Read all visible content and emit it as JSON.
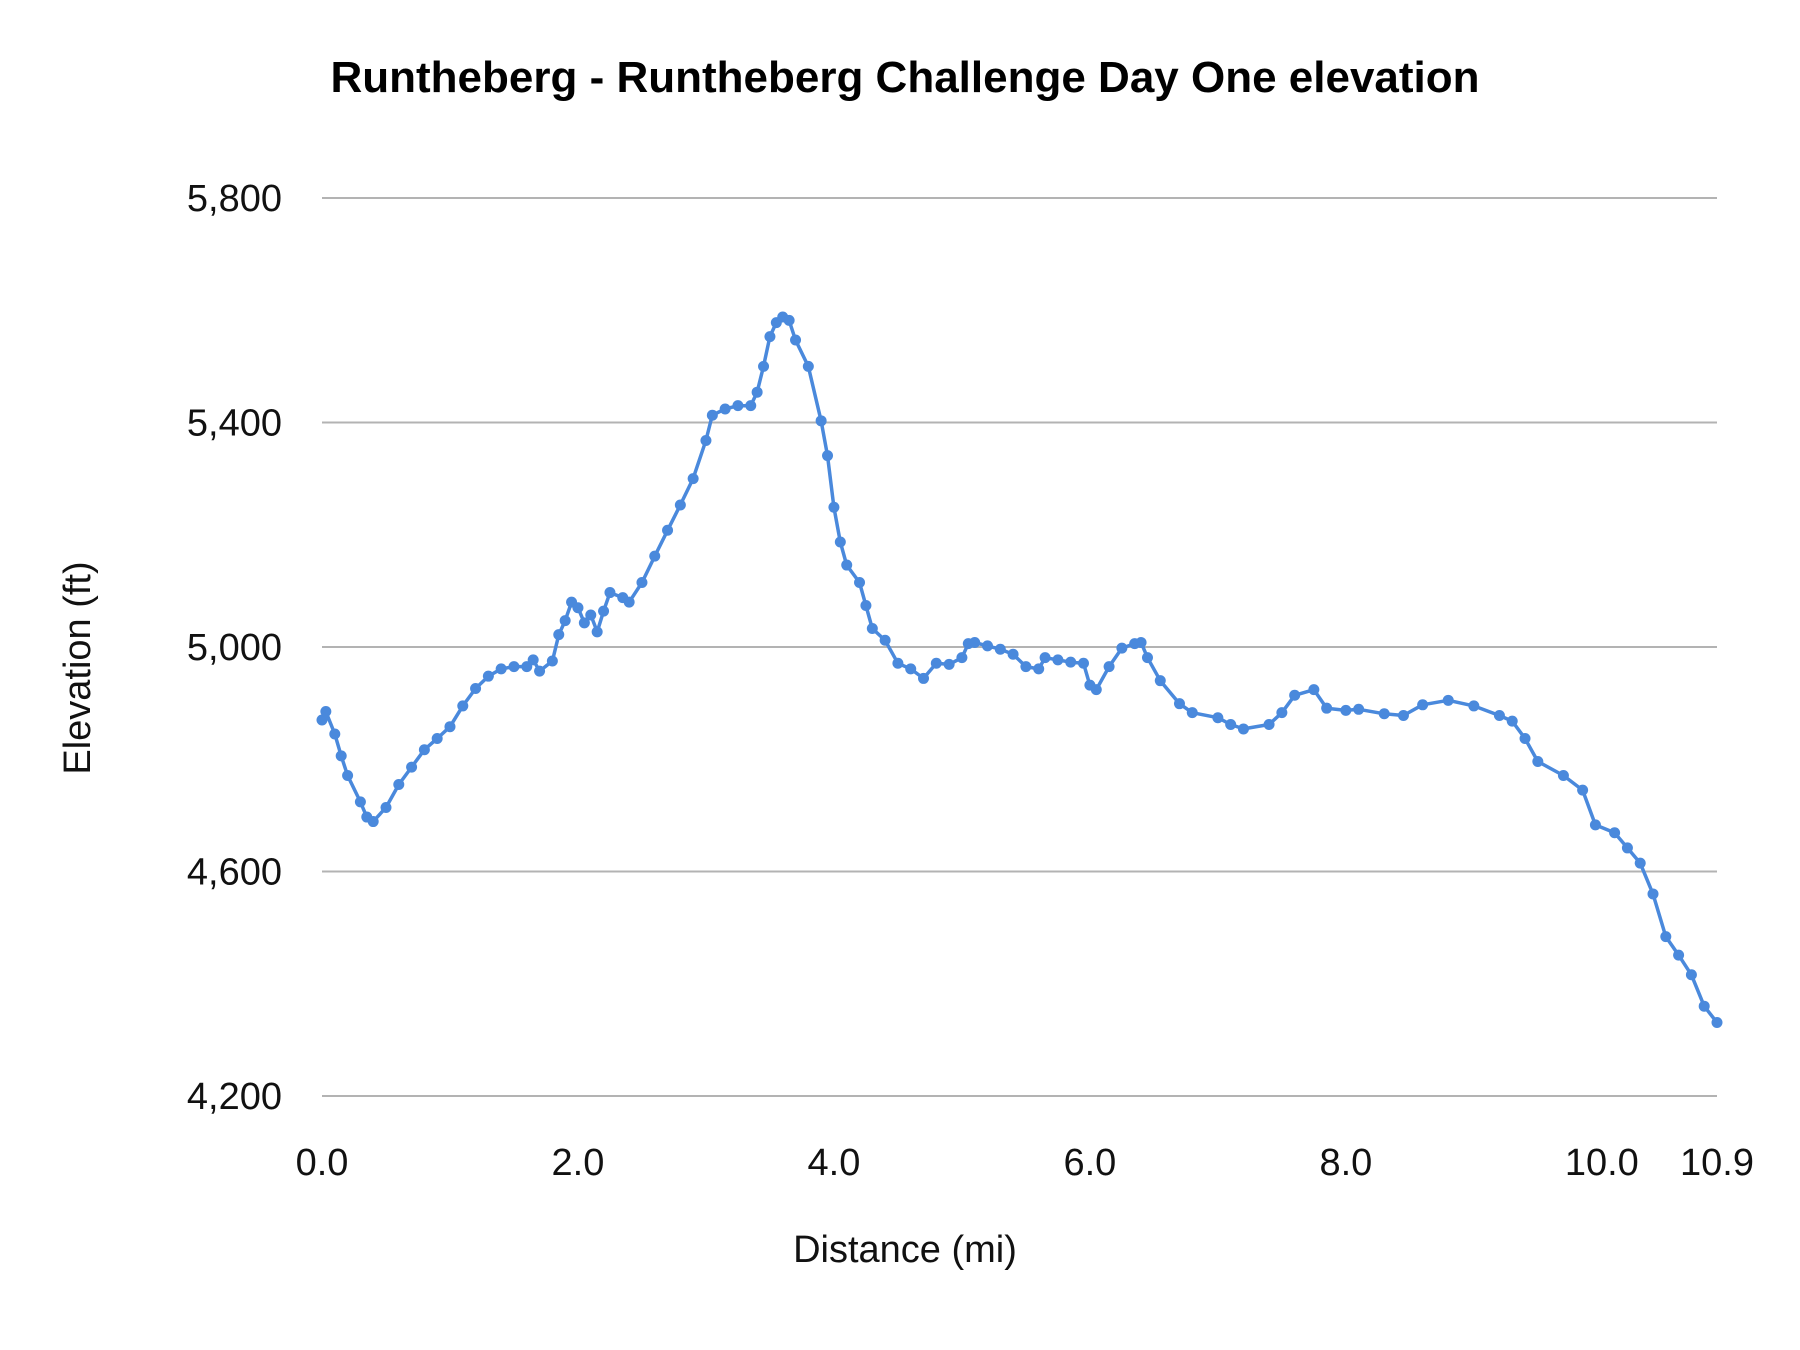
{
  "chart_data": {
    "type": "line",
    "title": "Runtheberg - Runtheberg Challenge Day One elevation",
    "xlabel": "Distance (mi)",
    "ylabel": "Elevation (ft)",
    "xlim": [
      0,
      10.9
    ],
    "ylim": [
      4200,
      5800
    ],
    "x_ticks": [
      "0.0",
      "2.0",
      "4.0",
      "6.0",
      "8.0",
      "10.0",
      "10.9"
    ],
    "x_tick_values": [
      0,
      2,
      4,
      6,
      8,
      10,
      10.9
    ],
    "y_ticks": [
      "4,200",
      "4,600",
      "5,000",
      "5,400",
      "5,800"
    ],
    "y_tick_values": [
      4200,
      4600,
      5000,
      5400,
      5800
    ],
    "grid": true,
    "legend": "none",
    "markers": true,
    "series": [
      {
        "color": "#4a89dc",
        "x": [
          0.0,
          0.03,
          0.1,
          0.15,
          0.2,
          0.3,
          0.35,
          0.4,
          0.5,
          0.6,
          0.7,
          0.8,
          0.9,
          1.0,
          1.1,
          1.2,
          1.3,
          1.4,
          1.5,
          1.6,
          1.65,
          1.7,
          1.8,
          1.85,
          1.9,
          1.95,
          2.0,
          2.05,
          2.1,
          2.15,
          2.2,
          2.25,
          2.35,
          2.4,
          2.5,
          2.6,
          2.7,
          2.8,
          2.9,
          3.0,
          3.05,
          3.15,
          3.25,
          3.35,
          3.4,
          3.45,
          3.5,
          3.55,
          3.6,
          3.65,
          3.7,
          3.8,
          3.9,
          3.95,
          4.0,
          4.05,
          4.1,
          4.2,
          4.25,
          4.3,
          4.4,
          4.5,
          4.6,
          4.7,
          4.8,
          4.9,
          5.0,
          5.05,
          5.1,
          5.2,
          5.3,
          5.4,
          5.5,
          5.6,
          5.65,
          5.75,
          5.85,
          5.95,
          6.0,
          6.05,
          6.15,
          6.25,
          6.35,
          6.4,
          6.45,
          6.55,
          6.7,
          6.8,
          7.0,
          7.1,
          7.2,
          7.4,
          7.5,
          7.6,
          7.75,
          7.85,
          8.0,
          8.1,
          8.3,
          8.45,
          8.6,
          8.8,
          9.0,
          9.2,
          9.3,
          9.4,
          9.5,
          9.7,
          9.85,
          9.95,
          10.1,
          10.2,
          10.3,
          10.4,
          10.5,
          10.6,
          10.7,
          10.8,
          10.9
        ],
        "y": [
          4870,
          4885,
          4845,
          4806,
          4771,
          4724,
          4697,
          4689,
          4714,
          4755,
          4786,
          4817,
          4837,
          4858,
          4895,
          4926,
          4948,
          4961,
          4965,
          4965,
          4977,
          4957,
          4975,
          5022,
          5047,
          5080,
          5070,
          5043,
          5057,
          5027,
          5064,
          5097,
          5088,
          5080,
          5115,
          5162,
          5208,
          5253,
          5300,
          5368,
          5413,
          5424,
          5430,
          5430,
          5454,
          5500,
          5553,
          5578,
          5588,
          5582,
          5547,
          5500,
          5403,
          5341,
          5249,
          5187,
          5146,
          5115,
          5074,
          5033,
          5012,
          4971,
          4961,
          4944,
          4971,
          4969,
          4981,
          5006,
          5008,
          5002,
          4996,
          4987,
          4965,
          4961,
          4981,
          4977,
          4973,
          4971,
          4932,
          4924,
          4965,
          4998,
          5006,
          5008,
          4981,
          4940,
          4899,
          4883,
          4874,
          4862,
          4854,
          4862,
          4883,
          4914,
          4924,
          4891,
          4887,
          4889,
          4881,
          4878,
          4897,
          4905,
          4895,
          4878,
          4868,
          4837,
          4796,
          4771,
          4745,
          4683,
          4669,
          4642,
          4615,
          4560,
          4484,
          4451,
          4416,
          4360,
          4331
        ]
      }
    ]
  }
}
